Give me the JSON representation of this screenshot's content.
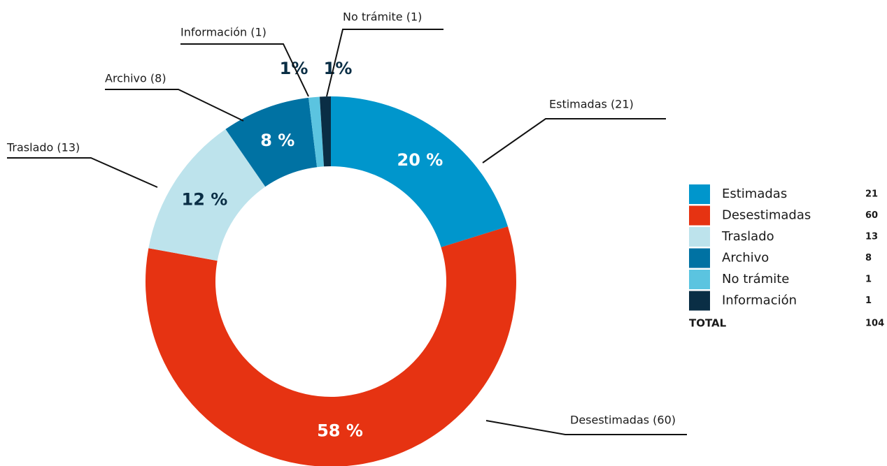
{
  "chart_data": {
    "type": "pie",
    "donut": true,
    "categories": [
      "Estimadas",
      "Desestimadas",
      "Traslado",
      "Archivo",
      "No trámite",
      "Información"
    ],
    "values": [
      21,
      60,
      13,
      8,
      1,
      1
    ],
    "value_labels": [
      "20 %",
      "58 %",
      "12 %",
      "8 %",
      "1%",
      "1%"
    ],
    "colors": [
      "#0096cc",
      "#e63312",
      "#bde3ec",
      "#0072a3",
      "#5bc4e0",
      "#0a2e45"
    ],
    "callouts": [
      "Estimadas (21)",
      "Desestimadas (60)",
      "Traslado (13)",
      "Archivo (8)",
      "Información (1)",
      "No trámite (1)"
    ],
    "total_label": "TOTAL",
    "total": 104
  }
}
